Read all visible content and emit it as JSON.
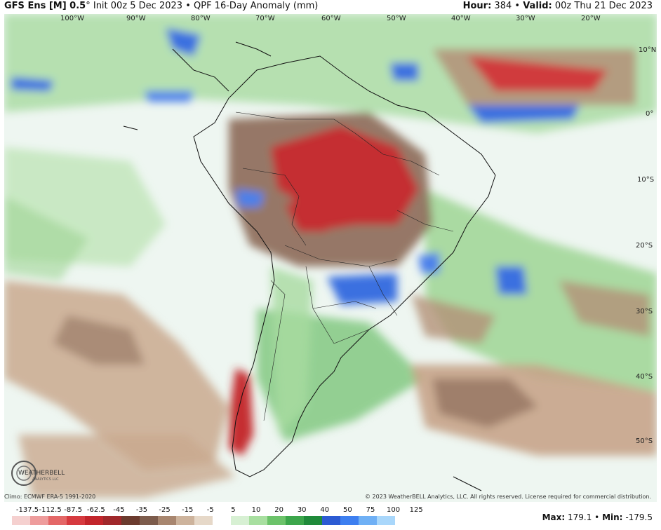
{
  "header": {
    "model": "GFS Ens [M] 0.5",
    "degree": "°",
    "init": "Init 00z 5 Dec 2023",
    "bullet": "•",
    "product": "QPF 16-Day Anomaly (mm)",
    "hour_label": "Hour:",
    "hour_value": "384",
    "valid_label": "Valid:",
    "valid_value": "00z Thu 21 Dec 2023"
  },
  "map": {
    "lon_labels": [
      "100°W",
      "90°W",
      "80°W",
      "70°W",
      "60°W",
      "50°W",
      "40°W",
      "30°W",
      "20°W"
    ],
    "lat_labels": [
      "10°N",
      "0°",
      "10°S",
      "20°S",
      "30°S",
      "40°S",
      "50°S"
    ],
    "logo_text": "WEATHERBELL",
    "logo_sub": "ANALYTICS LLC"
  },
  "footer": {
    "climo": "Climo: ECMWF ERA-5 1991-2020",
    "copyright": "© 2023 WeatherBELL Analytics, LLC. All rights reserved. License required for commercial distribution.",
    "max_label": "Max:",
    "max_value": "179.1",
    "min_label": "Min:",
    "min_value": "-179.5",
    "sep": "•"
  },
  "legend": {
    "ticks": [
      "-137.5",
      "-112.5",
      "-87.5",
      "-62.5",
      "-45",
      "-35",
      "-25",
      "-15",
      "-5",
      "5",
      "10",
      "20",
      "30",
      "40",
      "50",
      "75",
      "100",
      "125"
    ],
    "colors": [
      "#f5d0cf",
      "#ee9c9c",
      "#e46767",
      "#d63a3f",
      "#c2252b",
      "#a0282b",
      "#6b3b2e",
      "#7d5c4c",
      "#a8866f",
      "#cdb39c",
      "#e6d8c8",
      "#ffffff",
      "#d7f0d3",
      "#a8dfa0",
      "#6cc36a",
      "#3ca64b",
      "#1f8a3a",
      "#2c5bd3",
      "#3d7ff0",
      "#6fb0f5",
      "#a9d7fb"
    ]
  }
}
